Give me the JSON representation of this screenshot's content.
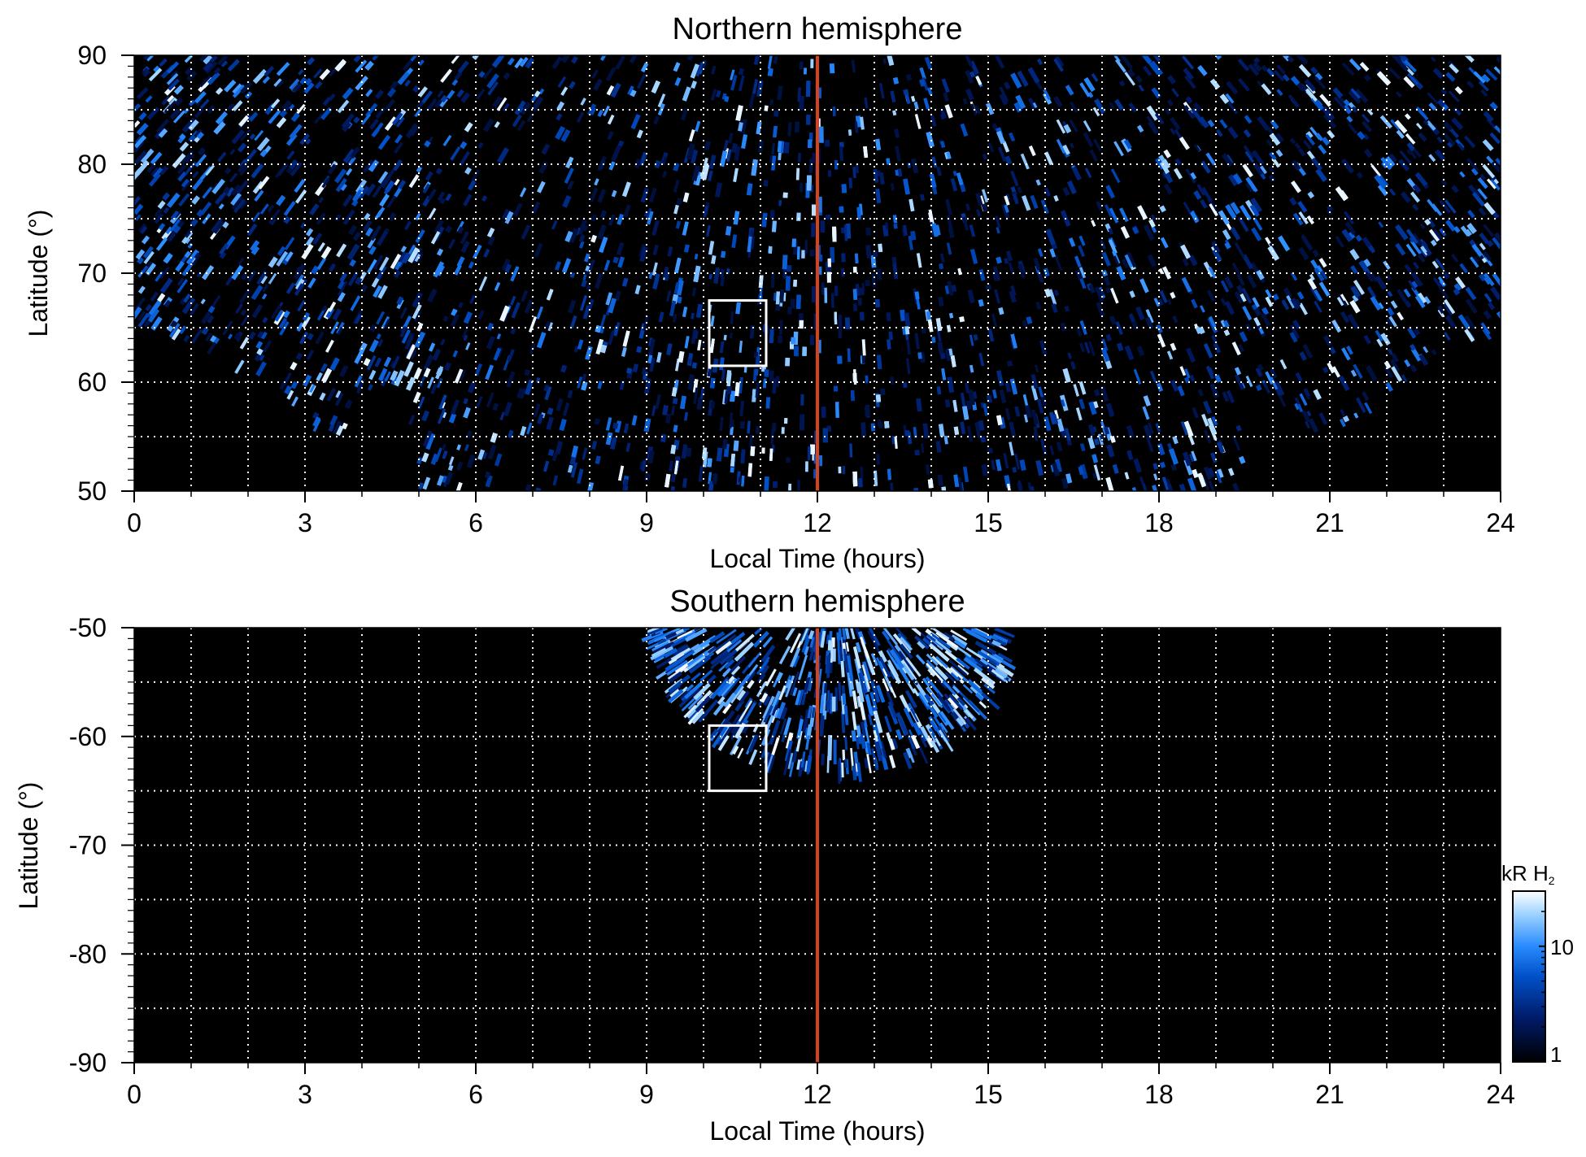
{
  "chart_data": [
    {
      "type": "heatmap",
      "title": "Northern hemisphere",
      "xlabel": "Local Time (hours)",
      "ylabel": "Latitude (°)",
      "xlim": [
        0,
        24
      ],
      "ylim": [
        50,
        90
      ],
      "x_ticks": [
        0,
        3,
        6,
        9,
        12,
        15,
        18,
        21,
        24
      ],
      "x_tick_labels": [
        "0",
        "3",
        "6",
        "9",
        "12",
        "15",
        "18",
        "21",
        "24"
      ],
      "y_ticks": [
        50,
        60,
        70,
        80,
        90
      ],
      "y_tick_labels": [
        "50",
        "60",
        "70",
        "80",
        "90"
      ],
      "x_grid": [
        1,
        2,
        3,
        4,
        5,
        6,
        7,
        8,
        9,
        10,
        11,
        12,
        13,
        14,
        15,
        16,
        17,
        18,
        19,
        20,
        21,
        22,
        23
      ],
      "y_grid": [
        55,
        60,
        65,
        70,
        75,
        80,
        85
      ],
      "grid": true,
      "noon_line": {
        "x": 12,
        "color": "#d4431c"
      },
      "box": {
        "x": [
          10.1,
          11.1
        ],
        "y": [
          61.5,
          67.5
        ]
      },
      "coverage_lower_boundary": [
        [
          0,
          65.7
        ],
        [
          1,
          63.5
        ],
        [
          2,
          61.0
        ],
        [
          3,
          57.5
        ],
        [
          3.5,
          54.0
        ],
        [
          4.0,
          58.0
        ],
        [
          4.6,
          60.0
        ],
        [
          5.0,
          50.0
        ],
        [
          19.4,
          50.0
        ],
        [
          19.8,
          60.0
        ],
        [
          20.3,
          57.0
        ],
        [
          21.0,
          53.5
        ],
        [
          22.0,
          59.0
        ],
        [
          23.0,
          63.0
        ],
        [
          24.0,
          64.5
        ]
      ],
      "bright_regions": [
        {
          "lt": 17.8,
          "lat": 74.5,
          "intensity": 1.0
        },
        {
          "lt": 12.5,
          "lat": 76.0,
          "intensity": 0.8
        },
        {
          "lt": 2.0,
          "lat": 73.0,
          "intensity": 0.6
        },
        {
          "lt": 22.5,
          "lat": 76.5,
          "intensity": 0.6
        }
      ]
    },
    {
      "type": "heatmap",
      "title": "Southern hemisphere",
      "xlabel": "Local Time (hours)",
      "ylabel": "Latitude (°)",
      "xlim": [
        0,
        24
      ],
      "ylim": [
        -90,
        -50
      ],
      "x_ticks": [
        0,
        3,
        6,
        9,
        12,
        15,
        18,
        21,
        24
      ],
      "x_tick_labels": [
        "0",
        "3",
        "6",
        "9",
        "12",
        "15",
        "18",
        "21",
        "24"
      ],
      "y_ticks": [
        -50,
        -60,
        -70,
        -80,
        -90
      ],
      "y_tick_labels": [
        "-50",
        "-60",
        "-70",
        "-80",
        "-90"
      ],
      "x_grid": [
        1,
        2,
        3,
        4,
        5,
        6,
        7,
        8,
        9,
        10,
        11,
        12,
        13,
        14,
        15,
        16,
        17,
        18,
        19,
        20,
        21,
        22,
        23
      ],
      "y_grid": [
        -55,
        -60,
        -65,
        -70,
        -75,
        -80,
        -85
      ],
      "grid": true,
      "noon_line": {
        "x": 12,
        "color": "#d4431c"
      },
      "box": {
        "x": [
          10.1,
          11.1
        ],
        "y": [
          -65.0,
          -59.0
        ]
      },
      "coverage": {
        "lt_range": [
          9.1,
          15.3
        ],
        "center_lt": 12.3,
        "lat_top": -50,
        "lat_bottom": -62.5
      }
    }
  ],
  "colorbar": {
    "label_main": "kR H",
    "label_sub": "2",
    "scale": "log",
    "range": [
      1,
      30
    ],
    "ticks": [
      1,
      10
    ],
    "tick_labels": [
      "1",
      "10"
    ],
    "colors": [
      "#000000",
      "#001a66",
      "#0050c8",
      "#2a8cff",
      "#a8d8ff",
      "#ffffff"
    ]
  }
}
